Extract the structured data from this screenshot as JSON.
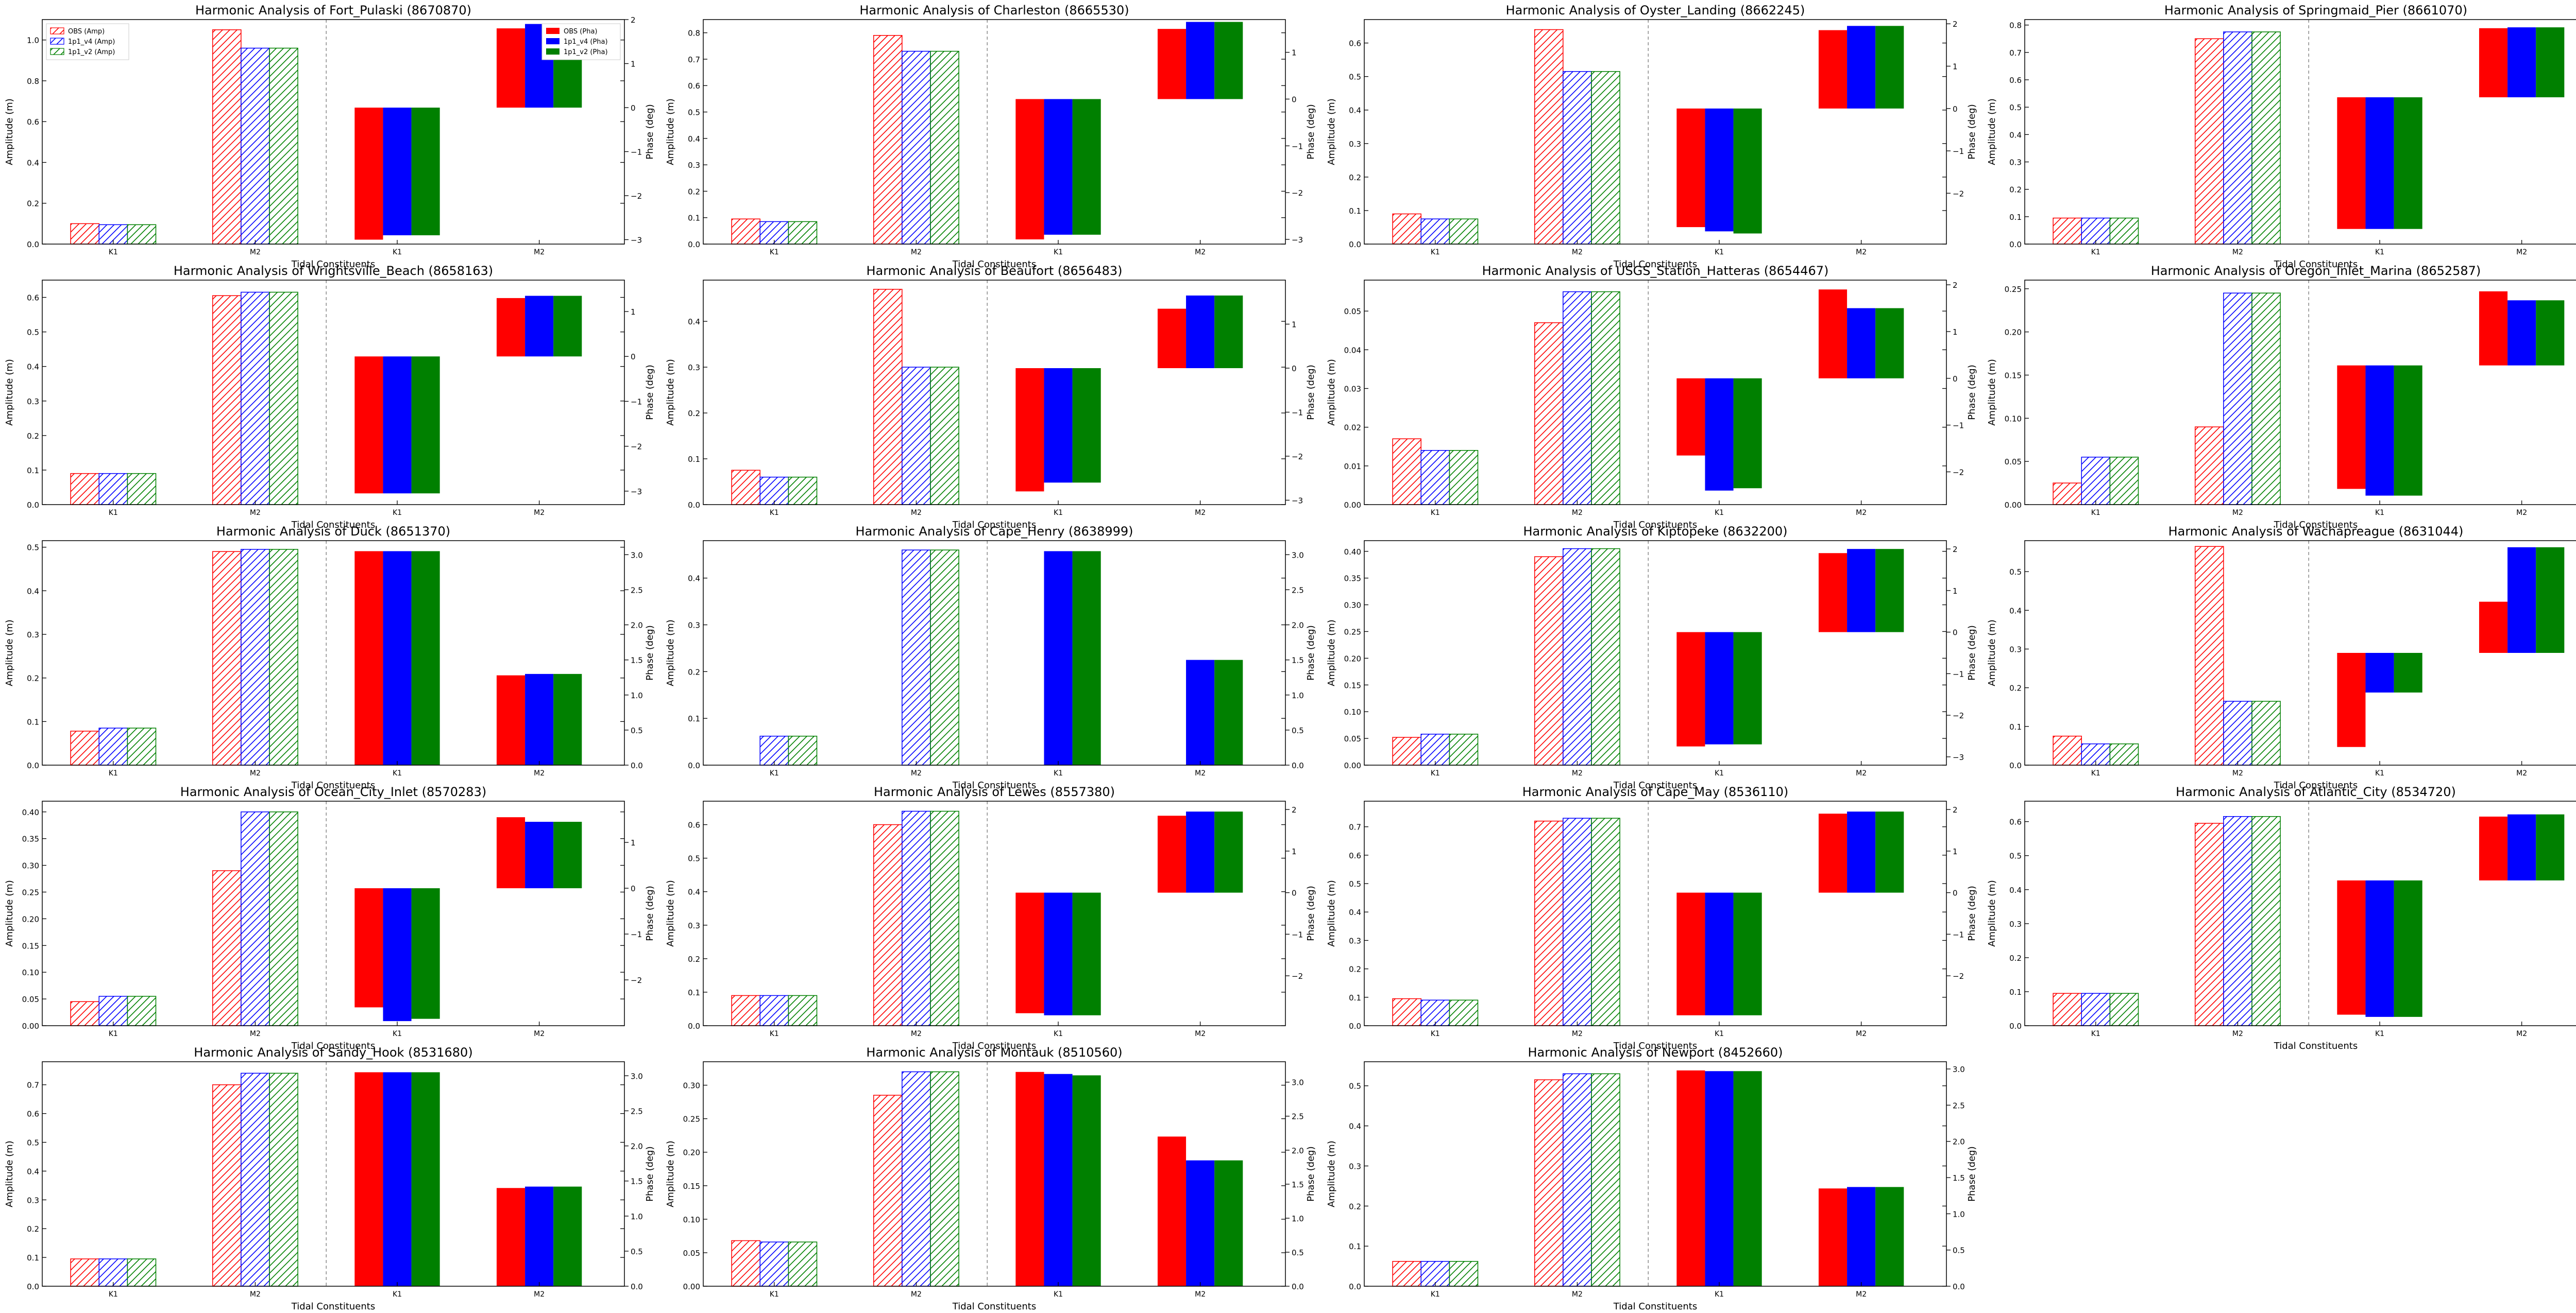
{
  "figure": {
    "xlabel": "Tidal Constituents",
    "ylabel_left": "Amplitude (m)",
    "ylabel_right": "Phase (deg)",
    "categories": [
      "K1",
      "M2"
    ],
    "legend_amp": [
      "OBS (Amp)",
      "1p1_v4 (Amp)",
      "1p1_v2 (Amp)"
    ],
    "legend_pha": [
      "OBS (Pha)",
      "1p1_v4 (Pha)",
      "1p1_v2 (Pha)"
    ],
    "colors": [
      "#ff0000",
      "#0000ff",
      "#008000"
    ],
    "legend_panel": 0
  },
  "chart_data": [
    {
      "type": "bar",
      "title": "Harmonic Analysis of Fort_Pulaski (8670870)",
      "amp_ylim": [
        0,
        1.1
      ],
      "amp_ticks": [
        0,
        0.2,
        0.4,
        0.6,
        0.8,
        1.0
      ],
      "amp_labels": [
        "0.0",
        "0.2",
        "0.4",
        "0.6",
        "0.8",
        "1.0"
      ],
      "pha_ylim": [
        -3.1,
        2.0
      ],
      "pha_ticks": [
        -3,
        -2,
        -1,
        0,
        1,
        2
      ],
      "pha_labels": [
        "−3",
        "−2",
        "−1",
        "0",
        "1",
        "2"
      ],
      "amplitude": {
        "K1": [
          0.1,
          0.095,
          0.095
        ],
        "M2": [
          1.05,
          0.96,
          0.96
        ]
      },
      "phase": {
        "K1": [
          -3.0,
          -2.9,
          -2.9
        ],
        "M2": [
          1.8,
          1.9,
          1.9
        ]
      }
    },
    {
      "type": "bar",
      "title": "Harmonic Analysis of Charleston (8665530)",
      "amp_ylim": [
        0,
        0.85
      ],
      "amp_ticks": [
        0,
        0.1,
        0.2,
        0.3,
        0.4,
        0.5,
        0.6,
        0.7,
        0.8
      ],
      "amp_labels": [
        "0.0",
        "0.1",
        "0.2",
        "0.3",
        "0.4",
        "0.5",
        "0.6",
        "0.7",
        "0.8"
      ],
      "pha_ylim": [
        -3.1,
        1.7
      ],
      "pha_ticks": [
        -3,
        -2,
        -1,
        0,
        1
      ],
      "pha_labels": [
        "−3",
        "−2",
        "−1",
        "0",
        "1"
      ],
      "amplitude": {
        "K1": [
          0.095,
          0.085,
          0.085
        ],
        "M2": [
          0.79,
          0.73,
          0.73
        ]
      },
      "phase": {
        "K1": [
          -3.0,
          -2.9,
          -2.9
        ],
        "M2": [
          1.5,
          1.65,
          1.65
        ]
      }
    },
    {
      "type": "bar",
      "title": "Harmonic Analysis of Oyster_Landing (8662245)",
      "amp_ylim": [
        0,
        0.67
      ],
      "amp_ticks": [
        0,
        0.1,
        0.2,
        0.3,
        0.4,
        0.5,
        0.6
      ],
      "amp_labels": [
        "0.0",
        "0.1",
        "0.2",
        "0.3",
        "0.4",
        "0.5",
        "0.6"
      ],
      "pha_ylim": [
        -3.2,
        2.1
      ],
      "pha_ticks": [
        -2,
        -1,
        0,
        1,
        2
      ],
      "pha_labels": [
        "−2",
        "−1",
        "0",
        "1",
        "2"
      ],
      "amplitude": {
        "K1": [
          0.09,
          0.075,
          0.075
        ],
        "M2": [
          0.64,
          0.515,
          0.515
        ]
      },
      "phase": {
        "K1": [
          -2.8,
          -2.9,
          -2.95
        ],
        "M2": [
          1.85,
          1.95,
          1.95
        ]
      }
    },
    {
      "type": "bar",
      "title": "Harmonic Analysis of Springmaid_Pier (8661070)",
      "amp_ylim": [
        0,
        0.82
      ],
      "amp_ticks": [
        0,
        0.1,
        0.2,
        0.3,
        0.4,
        0.5,
        0.6,
        0.7,
        0.8
      ],
      "amp_labels": [
        "0.0",
        "0.1",
        "0.2",
        "0.3",
        "0.4",
        "0.5",
        "0.6",
        "0.7",
        "0.8"
      ],
      "pha_ylim": [
        -3.4,
        1.8
      ],
      "pha_ticks": [
        -3,
        -2,
        -1,
        0,
        1
      ],
      "pha_labels": [
        "−3",
        "−2",
        "−1",
        "0",
        "1"
      ],
      "amplitude": {
        "K1": [
          0.095,
          0.095,
          0.095
        ],
        "M2": [
          0.75,
          0.775,
          0.775
        ]
      },
      "phase": {
        "K1": [
          -3.05,
          -3.05,
          -3.05
        ],
        "M2": [
          1.6,
          1.62,
          1.62
        ]
      }
    },
    {
      "type": "bar",
      "title": "Harmonic Analysis of Wrightsville_Beach (8658163)",
      "amp_ylim": [
        0,
        0.65
      ],
      "amp_ticks": [
        0,
        0.1,
        0.2,
        0.3,
        0.4,
        0.5,
        0.6
      ],
      "amp_labels": [
        "0.0",
        "0.1",
        "0.2",
        "0.3",
        "0.4",
        "0.5",
        "0.6"
      ],
      "pha_ylim": [
        -3.3,
        1.7
      ],
      "pha_ticks": [
        -3,
        -2,
        -1,
        0,
        1
      ],
      "pha_labels": [
        "−3",
        "−2",
        "−1",
        "0",
        "1"
      ],
      "amplitude": {
        "K1": [
          0.09,
          0.09,
          0.09
        ],
        "M2": [
          0.605,
          0.615,
          0.615
        ]
      },
      "phase": {
        "K1": [
          -3.05,
          -3.05,
          -3.05
        ],
        "M2": [
          1.3,
          1.35,
          1.35
        ]
      }
    },
    {
      "type": "bar",
      "title": "Harmonic Analysis of Beaufort (8656483)",
      "amp_ylim": [
        0,
        0.49
      ],
      "amp_ticks": [
        0,
        0.1,
        0.2,
        0.3,
        0.4
      ],
      "amp_labels": [
        "0.0",
        "0.1",
        "0.2",
        "0.3",
        "0.4"
      ],
      "pha_ylim": [
        -3.1,
        2.0
      ],
      "pha_ticks": [
        -3,
        -2,
        -1,
        0,
        1
      ],
      "pha_labels": [
        "−3",
        "−2",
        "−1",
        "0",
        "1"
      ],
      "amplitude": {
        "K1": [
          0.075,
          0.06,
          0.06
        ],
        "M2": [
          0.47,
          0.3,
          0.3
        ]
      },
      "phase": {
        "K1": [
          -2.8,
          -2.6,
          -2.6
        ],
        "M2": [
          1.35,
          1.65,
          1.65
        ]
      }
    },
    {
      "type": "bar",
      "title": "Harmonic Analysis of USGS_Station_Hatteras (8654467)",
      "amp_ylim": [
        0,
        0.058
      ],
      "amp_ticks": [
        0,
        0.01,
        0.02,
        0.03,
        0.04,
        0.05
      ],
      "amp_labels": [
        "0.00",
        "0.01",
        "0.02",
        "0.03",
        "0.04",
        "0.05"
      ],
      "pha_ylim": [
        -2.7,
        2.1
      ],
      "pha_ticks": [
        -2,
        -1,
        0,
        1,
        2
      ],
      "pha_labels": [
        "−2",
        "−1",
        "0",
        "1",
        "2"
      ],
      "amplitude": {
        "K1": [
          0.017,
          0.014,
          0.014
        ],
        "M2": [
          0.047,
          0.055,
          0.055
        ]
      },
      "phase": {
        "K1": [
          -1.65,
          -2.4,
          -2.35
        ],
        "M2": [
          1.9,
          1.5,
          1.5
        ]
      }
    },
    {
      "type": "bar",
      "title": "Harmonic Analysis of Oregon_Inlet_Marina (8652587)",
      "amp_ylim": [
        0,
        0.26
      ],
      "amp_ticks": [
        0,
        0.05,
        0.1,
        0.15,
        0.2,
        0.25
      ],
      "amp_labels": [
        "0.00",
        "0.05",
        "0.10",
        "0.15",
        "0.20",
        "0.25"
      ],
      "pha_ylim": [
        -3.1,
        1.9
      ],
      "pha_ticks": [
        -3,
        -2,
        -1,
        0,
        1
      ],
      "pha_labels": [
        "−3",
        "−2",
        "−1",
        "0",
        "1"
      ],
      "amplitude": {
        "K1": [
          0.025,
          0.055,
          0.055
        ],
        "M2": [
          0.09,
          0.245,
          0.245
        ]
      },
      "phase": {
        "K1": [
          -2.75,
          -2.9,
          -2.9
        ],
        "M2": [
          1.65,
          1.45,
          1.45
        ]
      }
    },
    {
      "type": "bar",
      "title": "Harmonic Analysis of Duck (8651370)",
      "amp_ylim": [
        0,
        0.515
      ],
      "amp_ticks": [
        0,
        0.1,
        0.2,
        0.3,
        0.4,
        0.5
      ],
      "amp_labels": [
        "0.0",
        "0.1",
        "0.2",
        "0.3",
        "0.4",
        "0.5"
      ],
      "pha_ylim": [
        0,
        3.2
      ],
      "pha_ticks": [
        0,
        0.5,
        1.0,
        1.5,
        2.0,
        2.5,
        3.0
      ],
      "pha_labels": [
        "0.0",
        "0.5",
        "1.0",
        "1.5",
        "2.0",
        "2.5",
        "3.0"
      ],
      "amplitude": {
        "K1": [
          0.078,
          0.085,
          0.085
        ],
        "M2": [
          0.49,
          0.495,
          0.495
        ]
      },
      "phase": {
        "K1": [
          3.05,
          3.05,
          3.05
        ],
        "M2": [
          1.28,
          1.3,
          1.3
        ]
      }
    },
    {
      "type": "bar",
      "title": "Harmonic Analysis of Cape_Henry (8638999)",
      "amp_ylim": [
        0,
        0.48
      ],
      "amp_ticks": [
        0,
        0.1,
        0.2,
        0.3,
        0.4
      ],
      "amp_labels": [
        "0.0",
        "0.1",
        "0.2",
        "0.3",
        "0.4"
      ],
      "pha_ylim": [
        0,
        3.2
      ],
      "pha_ticks": [
        0,
        0.5,
        1.0,
        1.5,
        2.0,
        2.5,
        3.0
      ],
      "pha_labels": [
        "0.0",
        "0.5",
        "1.0",
        "1.5",
        "2.0",
        "2.5",
        "3.0"
      ],
      "amplitude": {
        "K1": [
          0,
          0.062,
          0.062
        ],
        "M2": [
          0,
          0.46,
          0.46
        ]
      },
      "phase": {
        "K1": [
          0,
          3.05,
          3.05
        ],
        "M2": [
          0,
          1.5,
          1.5
        ]
      }
    },
    {
      "type": "bar",
      "title": "Harmonic Analysis of Kiptopeke (8632200)",
      "amp_ylim": [
        0,
        0.42
      ],
      "amp_ticks": [
        0,
        0.05,
        0.1,
        0.15,
        0.2,
        0.25,
        0.3,
        0.35,
        0.4
      ],
      "amp_labels": [
        "0.00",
        "0.05",
        "0.10",
        "0.15",
        "0.20",
        "0.25",
        "0.30",
        "0.35",
        "0.40"
      ],
      "pha_ylim": [
        -3.2,
        2.2
      ],
      "pha_ticks": [
        -3,
        -2,
        -1,
        0,
        1,
        2
      ],
      "pha_labels": [
        "−3",
        "−2",
        "−1",
        "0",
        "1",
        "2"
      ],
      "amplitude": {
        "K1": [
          0.052,
          0.058,
          0.058
        ],
        "M2": [
          0.39,
          0.405,
          0.405
        ]
      },
      "phase": {
        "K1": [
          -2.75,
          -2.7,
          -2.7
        ],
        "M2": [
          1.9,
          2.0,
          2.0
        ]
      }
    },
    {
      "type": "bar",
      "title": "Harmonic Analysis of Wachapreague (8631044)",
      "amp_ylim": [
        0,
        0.58
      ],
      "amp_ticks": [
        0,
        0.1,
        0.2,
        0.3,
        0.4,
        0.5
      ],
      "amp_labels": [
        "0.0",
        "0.1",
        "0.2",
        "0.3",
        "0.4",
        "0.5"
      ],
      "pha_ylim": [
        -3.4,
        3.4
      ],
      "pha_ticks": [
        -3,
        -2,
        -1,
        0,
        1,
        2,
        3
      ],
      "pha_labels": [
        "−3",
        "−2",
        "−1",
        "0",
        "1",
        "2",
        "3"
      ],
      "amplitude": {
        "K1": [
          0.075,
          0.055,
          0.055
        ],
        "M2": [
          0.565,
          0.165,
          0.165
        ]
      },
      "phase": {
        "K1": [
          -2.85,
          -1.2,
          -1.2
        ],
        "M2": [
          1.55,
          3.2,
          3.2
        ]
      }
    },
    {
      "type": "bar",
      "title": "Harmonic Analysis of Ocean_City_Inlet (8570283)",
      "amp_ylim": [
        0,
        0.42
      ],
      "amp_ticks": [
        0,
        0.05,
        0.1,
        0.15,
        0.2,
        0.25,
        0.3,
        0.35,
        0.4
      ],
      "amp_labels": [
        "0.00",
        "0.05",
        "0.10",
        "0.15",
        "0.20",
        "0.25",
        "0.30",
        "0.35",
        "0.40"
      ],
      "pha_ylim": [
        -3.0,
        1.9
      ],
      "pha_ticks": [
        -2,
        -1,
        0,
        1
      ],
      "pha_labels": [
        "−2",
        "−1",
        "0",
        "1"
      ],
      "amplitude": {
        "K1": [
          0.045,
          0.055,
          0.055
        ],
        "M2": [
          0.29,
          0.4,
          0.4
        ]
      },
      "phase": {
        "K1": [
          -2.6,
          -2.9,
          -2.85
        ],
        "M2": [
          1.55,
          1.45,
          1.45
        ]
      }
    },
    {
      "type": "bar",
      "title": "Harmonic Analysis of Lewes (8557380)",
      "amp_ylim": [
        0,
        0.67
      ],
      "amp_ticks": [
        0,
        0.1,
        0.2,
        0.3,
        0.4,
        0.5,
        0.6
      ],
      "amp_labels": [
        "0.0",
        "0.1",
        "0.2",
        "0.3",
        "0.4",
        "0.5",
        "0.6"
      ],
      "pha_ylim": [
        -3.2,
        2.2
      ],
      "pha_ticks": [
        -2,
        -1,
        0,
        1,
        2
      ],
      "pha_labels": [
        "−2",
        "−1",
        "0",
        "1",
        "2"
      ],
      "amplitude": {
        "K1": [
          0.09,
          0.09,
          0.09
        ],
        "M2": [
          0.6,
          0.64,
          0.64
        ]
      },
      "phase": {
        "K1": [
          -2.9,
          -2.95,
          -2.95
        ],
        "M2": [
          1.85,
          1.95,
          1.95
        ]
      }
    },
    {
      "type": "bar",
      "title": "Harmonic Analysis of Cape_May (8536110)",
      "amp_ylim": [
        0,
        0.79
      ],
      "amp_ticks": [
        0,
        0.1,
        0.2,
        0.3,
        0.4,
        0.5,
        0.6,
        0.7
      ],
      "amp_labels": [
        "0.0",
        "0.1",
        "0.2",
        "0.3",
        "0.4",
        "0.5",
        "0.6",
        "0.7"
      ],
      "pha_ylim": [
        -3.2,
        2.2
      ],
      "pha_ticks": [
        -2,
        -1,
        0,
        1,
        2
      ],
      "pha_labels": [
        "−2",
        "−1",
        "0",
        "1",
        "2"
      ],
      "amplitude": {
        "K1": [
          0.095,
          0.09,
          0.09
        ],
        "M2": [
          0.72,
          0.73,
          0.73
        ]
      },
      "phase": {
        "K1": [
          -2.95,
          -2.95,
          -2.95
        ],
        "M2": [
          1.9,
          1.95,
          1.95
        ]
      }
    },
    {
      "type": "bar",
      "title": "Harmonic Analysis of Atlantic_City (8534720)",
      "amp_ylim": [
        0,
        0.66
      ],
      "amp_ticks": [
        0,
        0.1,
        0.2,
        0.3,
        0.4,
        0.5,
        0.6
      ],
      "amp_labels": [
        "0.0",
        "0.1",
        "0.2",
        "0.3",
        "0.4",
        "0.5",
        "0.6"
      ],
      "pha_ylim": [
        -3.3,
        1.8
      ],
      "pha_ticks": [
        -3,
        -2,
        -1,
        0,
        1
      ],
      "pha_labels": [
        "−3",
        "−2",
        "−1",
        "0",
        "1"
      ],
      "amplitude": {
        "K1": [
          0.095,
          0.095,
          0.095
        ],
        "M2": [
          0.595,
          0.615,
          0.615
        ]
      },
      "phase": {
        "K1": [
          -3.05,
          -3.1,
          -3.1
        ],
        "M2": [
          1.45,
          1.5,
          1.5
        ]
      }
    },
    {
      "type": "bar",
      "title": "Harmonic Analysis of Sandy_Hook (8531680)",
      "amp_ylim": [
        0,
        0.78
      ],
      "amp_ticks": [
        0,
        0.1,
        0.2,
        0.3,
        0.4,
        0.5,
        0.6,
        0.7
      ],
      "amp_labels": [
        "0.0",
        "0.1",
        "0.2",
        "0.3",
        "0.4",
        "0.5",
        "0.6",
        "0.7"
      ],
      "pha_ylim": [
        0,
        3.2
      ],
      "pha_ticks": [
        0,
        0.5,
        1.0,
        1.5,
        2.0,
        2.5,
        3.0
      ],
      "pha_labels": [
        "0.0",
        "0.5",
        "1.0",
        "1.5",
        "2.0",
        "2.5",
        "3.0"
      ],
      "amplitude": {
        "K1": [
          0.095,
          0.095,
          0.095
        ],
        "M2": [
          0.7,
          0.74,
          0.74
        ]
      },
      "phase": {
        "K1": [
          3.05,
          3.05,
          3.05
        ],
        "M2": [
          1.4,
          1.42,
          1.42
        ]
      }
    },
    {
      "type": "bar",
      "title": "Harmonic Analysis of Montauk (8510560)",
      "amp_ylim": [
        0,
        0.335
      ],
      "amp_ticks": [
        0,
        0.05,
        0.1,
        0.15,
        0.2,
        0.25,
        0.3
      ],
      "amp_labels": [
        "0.00",
        "0.05",
        "0.10",
        "0.15",
        "0.20",
        "0.25",
        "0.30"
      ],
      "pha_ylim": [
        0,
        3.3
      ],
      "pha_ticks": [
        0,
        0.5,
        1.0,
        1.5,
        2.0,
        2.5,
        3.0
      ],
      "pha_labels": [
        "0.0",
        "0.5",
        "1.0",
        "1.5",
        "2.0",
        "2.5",
        "3.0"
      ],
      "amplitude": {
        "K1": [
          0.068,
          0.066,
          0.066
        ],
        "M2": [
          0.285,
          0.32,
          0.32
        ]
      },
      "phase": {
        "K1": [
          3.15,
          3.12,
          3.1
        ],
        "M2": [
          2.2,
          1.85,
          1.85
        ]
      }
    },
    {
      "type": "bar",
      "title": "Harmonic Analysis of Newport (8452660)",
      "amp_ylim": [
        0,
        0.56
      ],
      "amp_ticks": [
        0,
        0.1,
        0.2,
        0.3,
        0.4,
        0.5
      ],
      "amp_labels": [
        "0.0",
        "0.1",
        "0.2",
        "0.3",
        "0.4",
        "0.5"
      ],
      "pha_ylim": [
        0,
        3.1
      ],
      "pha_ticks": [
        0,
        0.5,
        1.0,
        1.5,
        2.0,
        2.5,
        3.0
      ],
      "pha_labels": [
        "0.0",
        "0.5",
        "1.0",
        "1.5",
        "2.0",
        "2.5",
        "3.0"
      ],
      "amplitude": {
        "K1": [
          0.062,
          0.062,
          0.062
        ],
        "M2": [
          0.515,
          0.53,
          0.53
        ]
      },
      "phase": {
        "K1": [
          2.98,
          2.97,
          2.97
        ],
        "M2": [
          1.35,
          1.37,
          1.37
        ]
      }
    }
  ]
}
